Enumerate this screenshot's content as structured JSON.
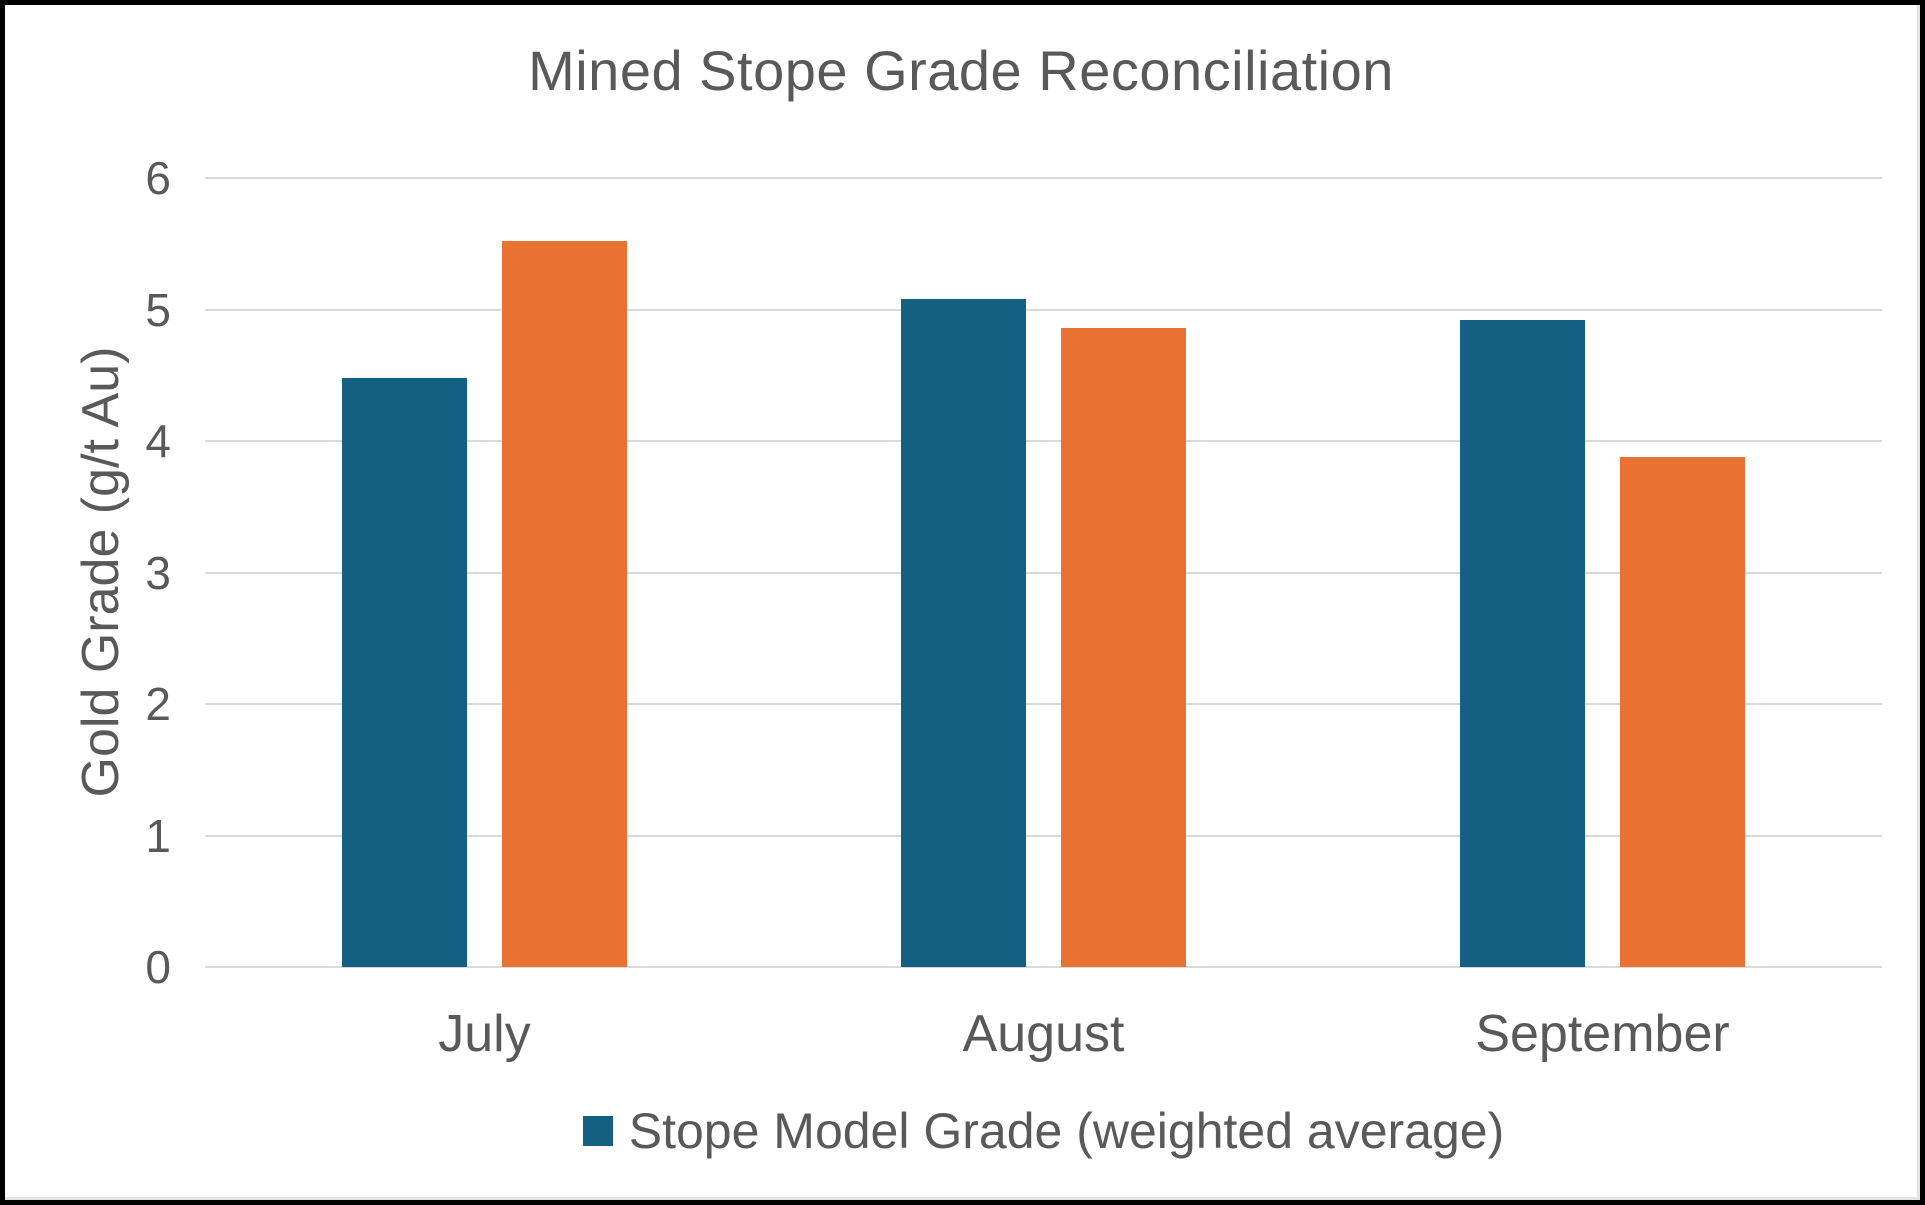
{
  "chart_data": {
    "type": "bar",
    "title": "Mined Stope Grade Reconciliation",
    "ylabel": "Gold Grade (g/t Au)",
    "xlabel": "",
    "categories": [
      "July",
      "August",
      "September"
    ],
    "series": [
      {
        "name": "Stope Model Grade (weighted average)",
        "color": "#156082",
        "values": [
          4.48,
          5.08,
          4.92
        ]
      },
      {
        "name": "",
        "color": "#E97132",
        "values": [
          5.52,
          4.86,
          3.88
        ]
      }
    ],
    "ylim": [
      0,
      6
    ],
    "yticks": [
      0,
      1,
      2,
      3,
      4,
      5,
      6
    ],
    "grid": true,
    "legend_position": "bottom",
    "legend": {
      "entries": [
        {
          "label": "Stope Model Grade (weighted average)",
          "color": "#156082"
        }
      ]
    }
  },
  "colors": {
    "text": "#595959",
    "gridline": "#D9D9D9",
    "series_blue": "#156082",
    "series_orange": "#E97132",
    "background": "#FFFFFF",
    "frame_border": "#000000"
  }
}
